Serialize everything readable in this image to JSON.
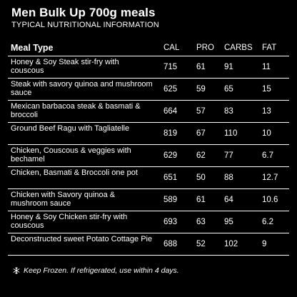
{
  "header": {
    "title": "Men Bulk Up 700g meals",
    "subtitle": "TYPICAL NUTRITIONAL INFORMATION"
  },
  "table": {
    "columns": [
      "Meal Type",
      "CAL",
      "PRO",
      "CARBS",
      "FAT"
    ],
    "rows": [
      {
        "meal": "Honey & Soy Steak stir-fry with couscous",
        "cal": "715",
        "pro": "61",
        "carbs": "91",
        "fat": "11"
      },
      {
        "meal": "Steak with savory quinoa and mushroom sauce",
        "cal": "625",
        "pro": "59",
        "carbs": "65",
        "fat": "15"
      },
      {
        "meal": "Mexican barbacoa steak & basmati & broccoli",
        "cal": "664",
        "pro": "57",
        "carbs": "83",
        "fat": "13"
      },
      {
        "meal": "Ground Beef Ragu with Tagliatelle",
        "cal": "819",
        "pro": "67",
        "carbs": "110",
        "fat": "10"
      },
      {
        "meal": "Chicken, Couscous & veggies with bechamel",
        "cal": "629",
        "pro": "62",
        "carbs": "77",
        "fat": "6.7"
      },
      {
        "meal": "Chicken, Basmati & Broccoli one pot",
        "cal": "651",
        "pro": "50",
        "carbs": "88",
        "fat": "12.7"
      },
      {
        "meal": "Chicken with Savory quinoa & mushroom sauce",
        "cal": "589",
        "pro": "61",
        "carbs": "64",
        "fat": "10.6"
      },
      {
        "meal": "Honey & Soy Chicken stir-fry with couscous",
        "cal": "693",
        "pro": "63",
        "carbs": "95",
        "fat": "6.2"
      },
      {
        "meal": "Deconstructed sweet Potato Cottage Pie",
        "cal": "688",
        "pro": "52",
        "carbs": "102",
        "fat": "9"
      }
    ]
  },
  "footer": {
    "icon": "snowflake-icon",
    "note": "Keep Frozen. If refrigerated, use within 4 days."
  }
}
